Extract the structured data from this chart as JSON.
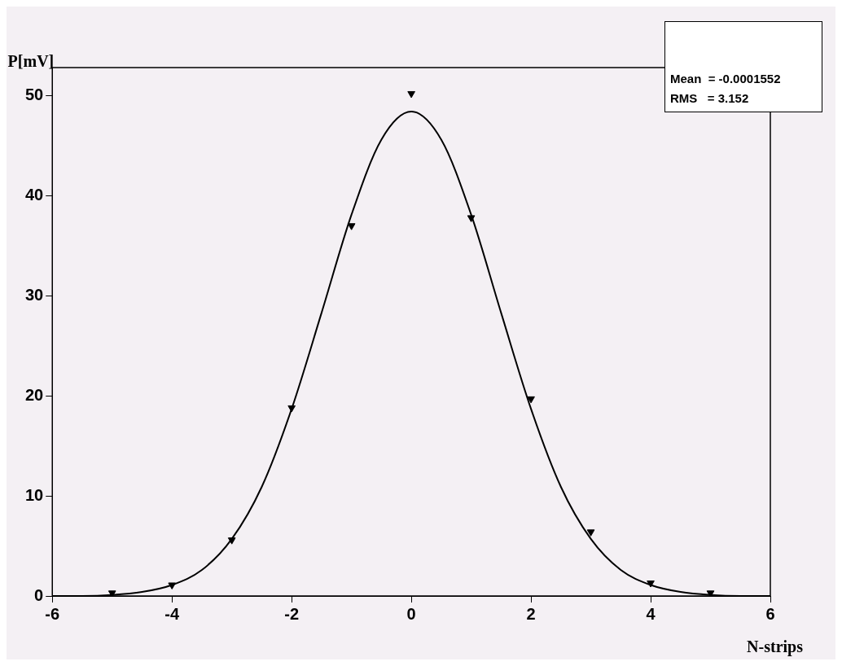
{
  "chart_data": {
    "type": "scatter",
    "xlabel": "N-strips",
    "ylabel": "P[mV]",
    "xlim": [
      -6,
      6
    ],
    "ylim": [
      0,
      52.8
    ],
    "xticks": [
      -6,
      -4,
      -2,
      0,
      2,
      4,
      6
    ],
    "yticks": [
      0,
      10,
      20,
      30,
      40,
      50
    ],
    "grid": false,
    "marker": "triangle",
    "series": [
      {
        "color": "#000000",
        "x": [
          -5,
          -4,
          -3,
          -2,
          -1,
          0,
          1,
          2,
          3,
          4,
          5
        ],
        "values": [
          0.3,
          1.1,
          5.6,
          18.8,
          37.0,
          50.2,
          37.8,
          19.7,
          6.4,
          1.3,
          0.3
        ]
      },
      {
        "type": "line",
        "marker": "none",
        "color": "#000000",
        "x": [
          -6,
          -5.5,
          -5,
          -4.5,
          -4,
          -3.5,
          -3,
          -2.5,
          -2,
          -1.5,
          -1,
          -0.5,
          0,
          0.5,
          1,
          1.5,
          2,
          2.5,
          3,
          3.5,
          4,
          4.5,
          5,
          5.5,
          6
        ],
        "values": [
          0.0,
          0.0,
          0.1,
          0.4,
          1.1,
          2.6,
          5.7,
          10.9,
          18.7,
          28.3,
          38.1,
          45.6,
          48.4,
          45.6,
          38.1,
          28.3,
          18.7,
          10.9,
          5.7,
          2.6,
          1.1,
          0.4,
          0.1,
          0.0,
          0.0
        ]
      }
    ],
    "annotations": [
      "Mean  = -0.0001552",
      "RMS   = 3.152"
    ]
  }
}
